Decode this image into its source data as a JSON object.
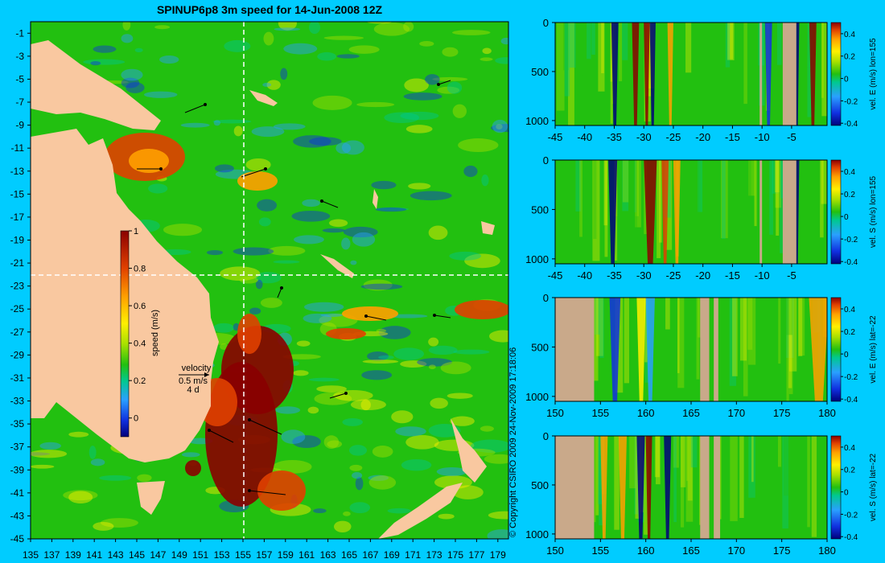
{
  "title": "SPINUP6p8 3m speed for 14-Jun-2008 12Z",
  "copyright": "© Copyright CSIRO 2009   24-Nov-2009 17:18:06",
  "colors": {
    "background": "#00ccff",
    "land": "#f9c8a0",
    "section_land": "#c9a98a",
    "cut_line": "#ffffff",
    "vector": "#000000"
  },
  "chart_data": [
    {
      "type": "heatmap",
      "name": "map",
      "title": "SPINUP6p8 3m speed for 14-Jun-2008 12Z",
      "x_ticks": [
        "135",
        "137",
        "139",
        "141",
        "143",
        "145",
        "147",
        "149",
        "151",
        "153",
        "155",
        "157",
        "159",
        "161",
        "163",
        "165",
        "167",
        "169",
        "171",
        "173",
        "175",
        "177",
        "179"
      ],
      "y_ticks": [
        "-1",
        "-3",
        "-5",
        "-7",
        "-9",
        "-11",
        "-13",
        "-15",
        "-17",
        "-19",
        "-21",
        "-23",
        "-25",
        "-27",
        "-29",
        "-31",
        "-33",
        "-35",
        "-37",
        "-39",
        "-41",
        "-43",
        "-45"
      ],
      "xlim": [
        135,
        180
      ],
      "ylim": [
        -45,
        0
      ],
      "colorbar": {
        "label": "speed (m/s)",
        "ticks": [
          "0",
          "0.2",
          "0.4",
          "0.6",
          "0.8",
          "1"
        ],
        "range": [
          -0.1,
          1
        ]
      },
      "vector_legend": {
        "title": "velocity",
        "scale": "0.5 m/s",
        "period": "4 d"
      },
      "section_cuts": {
        "lon": 155,
        "lat": -22
      }
    },
    {
      "type": "heatmap",
      "name": "section-1",
      "x_ticks": [
        "-45",
        "-40",
        "-35",
        "-30",
        "-25",
        "-20",
        "-15",
        "-10",
        "-5"
      ],
      "xlim": [
        -45,
        1
      ],
      "y_ticks": [
        "0",
        "500",
        "1000"
      ],
      "ylim": [
        1050,
        0
      ],
      "colorbar": {
        "label": "vel. E (m/s) lon=155",
        "ticks": [
          "-0.4",
          "-0.2",
          "0",
          "0.2",
          "0.4"
        ],
        "range": [
          -0.42,
          0.5
        ]
      }
    },
    {
      "type": "heatmap",
      "name": "section-2",
      "x_ticks": [
        "-45",
        "-40",
        "-35",
        "-30",
        "-25",
        "-20",
        "-15",
        "-10",
        "-5"
      ],
      "xlim": [
        -45,
        1
      ],
      "y_ticks": [
        "0",
        "500",
        "1000"
      ],
      "ylim": [
        1050,
        0
      ],
      "colorbar": {
        "label": "vel. S (m/s) lon=155",
        "ticks": [
          "-0.4",
          "-0.2",
          "0",
          "0.2",
          "0.4"
        ],
        "range": [
          -0.42,
          0.5
        ]
      }
    },
    {
      "type": "heatmap",
      "name": "section-3",
      "x_ticks": [
        "150",
        "155",
        "160",
        "165",
        "170",
        "175",
        "180"
      ],
      "xlim": [
        150,
        180
      ],
      "y_ticks": [
        "0",
        "500",
        "1000"
      ],
      "ylim": [
        1050,
        0
      ],
      "colorbar": {
        "label": "vel. E (m/s) lat=-22",
        "ticks": [
          "-0.4",
          "-0.2",
          "0",
          "0.2",
          "0.4"
        ],
        "range": [
          -0.42,
          0.5
        ]
      }
    },
    {
      "type": "heatmap",
      "name": "section-4",
      "x_ticks": [
        "150",
        "155",
        "160",
        "165",
        "170",
        "175",
        "180"
      ],
      "xlim": [
        150,
        180
      ],
      "y_ticks": [
        "0",
        "500",
        "1000"
      ],
      "ylim": [
        1050,
        0
      ],
      "colorbar": {
        "label": "vel. S (m/s) lat=-22",
        "ticks": [
          "-0.4",
          "-0.2",
          "0",
          "0.2",
          "0.4"
        ],
        "range": [
          -0.42,
          0.5
        ]
      }
    }
  ]
}
